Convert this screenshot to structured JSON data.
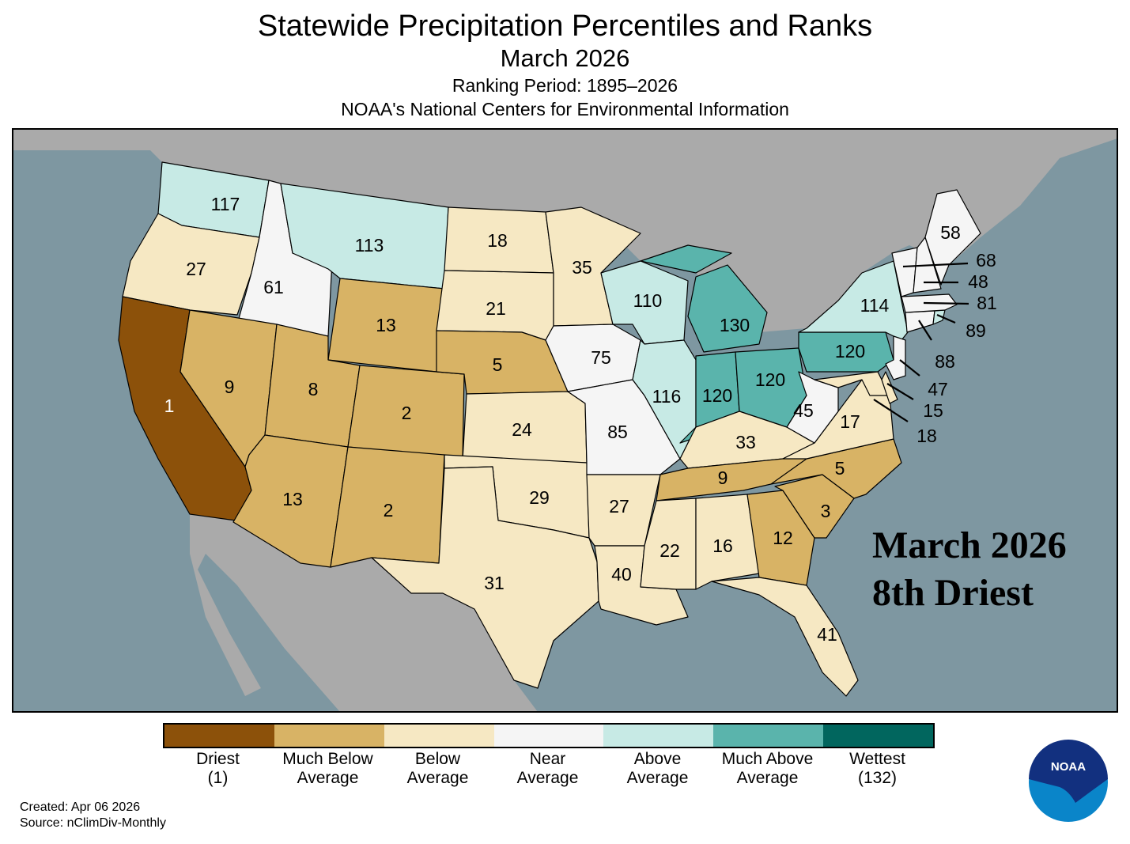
{
  "header": {
    "title": "Statewide Precipitation Percentiles and Ranks",
    "month": "March 2026",
    "period": "Ranking Period: 1895–2026",
    "org": "NOAA's National Centers for Environmental Information"
  },
  "overlay": {
    "line1": "March 2026",
    "line2": "8th Driest"
  },
  "legend": [
    {
      "line1": "Driest",
      "line2": "(1)",
      "color": "#8c510a"
    },
    {
      "line1": "Much Below",
      "line2": "Average",
      "color": "#d8b365"
    },
    {
      "line1": "Below",
      "line2": "Average",
      "color": "#f6e8c3"
    },
    {
      "line1": "Near",
      "line2": "Average",
      "color": "#f5f5f5"
    },
    {
      "line1": "Above",
      "line2": "Average",
      "color": "#c7eae5"
    },
    {
      "line1": "Much Above",
      "line2": "Average",
      "color": "#5ab4ac"
    },
    {
      "line1": "Wettest",
      "line2": "(132)",
      "color": "#01665e"
    }
  ],
  "states": {
    "WA": {
      "rank": "117",
      "cat": 4
    },
    "OR": {
      "rank": "27",
      "cat": 2
    },
    "CA": {
      "rank": "1",
      "cat": 0
    },
    "ID": {
      "rank": "61",
      "cat": 3
    },
    "NV": {
      "rank": "9",
      "cat": 1
    },
    "MT": {
      "rank": "113",
      "cat": 4
    },
    "WY": {
      "rank": "13",
      "cat": 1
    },
    "UT": {
      "rank": "8",
      "cat": 1
    },
    "CO": {
      "rank": "2",
      "cat": 1
    },
    "AZ": {
      "rank": "13",
      "cat": 1
    },
    "NM": {
      "rank": "2",
      "cat": 1
    },
    "ND": {
      "rank": "18",
      "cat": 2
    },
    "SD": {
      "rank": "21",
      "cat": 2
    },
    "NE": {
      "rank": "5",
      "cat": 1
    },
    "KS": {
      "rank": "24",
      "cat": 2
    },
    "OK": {
      "rank": "29",
      "cat": 2
    },
    "TX": {
      "rank": "31",
      "cat": 2
    },
    "MN": {
      "rank": "35",
      "cat": 2
    },
    "IA": {
      "rank": "75",
      "cat": 3
    },
    "MO": {
      "rank": "85",
      "cat": 3
    },
    "AR": {
      "rank": "27",
      "cat": 2
    },
    "LA": {
      "rank": "40",
      "cat": 2
    },
    "WI": {
      "rank": "110",
      "cat": 4
    },
    "IL": {
      "rank": "116",
      "cat": 4
    },
    "MI": {
      "rank": "130",
      "cat": 5
    },
    "IN": {
      "rank": "120",
      "cat": 5
    },
    "OH": {
      "rank": "120",
      "cat": 5
    },
    "KY": {
      "rank": "33",
      "cat": 2
    },
    "TN": {
      "rank": "9",
      "cat": 1
    },
    "MS": {
      "rank": "22",
      "cat": 2
    },
    "AL": {
      "rank": "16",
      "cat": 2
    },
    "GA": {
      "rank": "12",
      "cat": 1
    },
    "FL": {
      "rank": "41",
      "cat": 2
    },
    "SC": {
      "rank": "3",
      "cat": 1
    },
    "NC": {
      "rank": "5",
      "cat": 1
    },
    "VA": {
      "rank": "17",
      "cat": 2
    },
    "WV": {
      "rank": "45",
      "cat": 3
    },
    "PA": {
      "rank": "120",
      "cat": 5
    },
    "NY": {
      "rank": "114",
      "cat": 4
    },
    "ME": {
      "rank": "58",
      "cat": 3
    },
    "VT": {
      "rank": "68",
      "cat": 3
    },
    "NH": {
      "rank": "48",
      "cat": 3
    },
    "MA": {
      "rank": "81",
      "cat": 3
    },
    "RI": {
      "rank": "89",
      "cat": 4
    },
    "CT": {
      "rank": "88",
      "cat": 3
    },
    "NJ": {
      "rank": "47",
      "cat": 3
    },
    "DE": {
      "rank": "15",
      "cat": 2
    },
    "MD": {
      "rank": "18",
      "cat": 2
    }
  },
  "map_colors": {
    "ocean": "#7e97a1",
    "land": "#aaaaaa"
  },
  "footer": {
    "created": "Created: Apr 06 2026",
    "source": "nClimDiv-Monthly",
    "source_label": "Source: nClimDiv-Monthly"
  },
  "logo": {
    "text": "NOAA"
  }
}
